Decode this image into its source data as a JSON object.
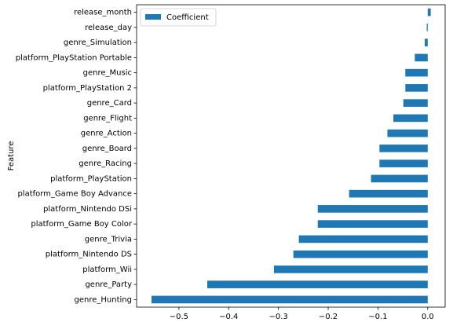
{
  "chart_data": {
    "type": "bar",
    "orientation": "horizontal",
    "ylabel": "Feature",
    "xlabel": "",
    "title": "",
    "categories": [
      "genre_Hunting",
      "genre_Party",
      "platform_Wii",
      "platform_Nintendo DS",
      "genre_Trivia",
      "platform_Game Boy Color",
      "platform_Nintendo DSi",
      "platform_Game Boy Advance",
      "platform_PlayStation",
      "genre_Racing",
      "genre_Board",
      "genre_Action",
      "genre_Flight",
      "genre_Card",
      "platform_PlayStation 2",
      "genre_Music",
      "platform_PlayStation Portable",
      "genre_Simulation",
      "release_day",
      "release_month"
    ],
    "series": [
      {
        "name": "Coefficient",
        "color": "#1f77b4",
        "values": [
          -0.555,
          -0.443,
          -0.309,
          -0.27,
          -0.259,
          -0.221,
          -0.221,
          -0.158,
          -0.114,
          -0.097,
          -0.097,
          -0.081,
          -0.069,
          -0.049,
          -0.045,
          -0.045,
          -0.026,
          -0.006,
          -0.002,
          0.006
        ]
      }
    ],
    "xlim": [
      -0.585,
      0.035
    ],
    "xticks": [
      -0.5,
      -0.4,
      -0.3,
      -0.2,
      -0.1,
      0.0
    ],
    "xtick_labels": [
      "−0.5",
      "−0.4",
      "−0.3",
      "−0.2",
      "−0.1",
      "0.0"
    ],
    "grid": false,
    "legend_position": "top-left"
  }
}
